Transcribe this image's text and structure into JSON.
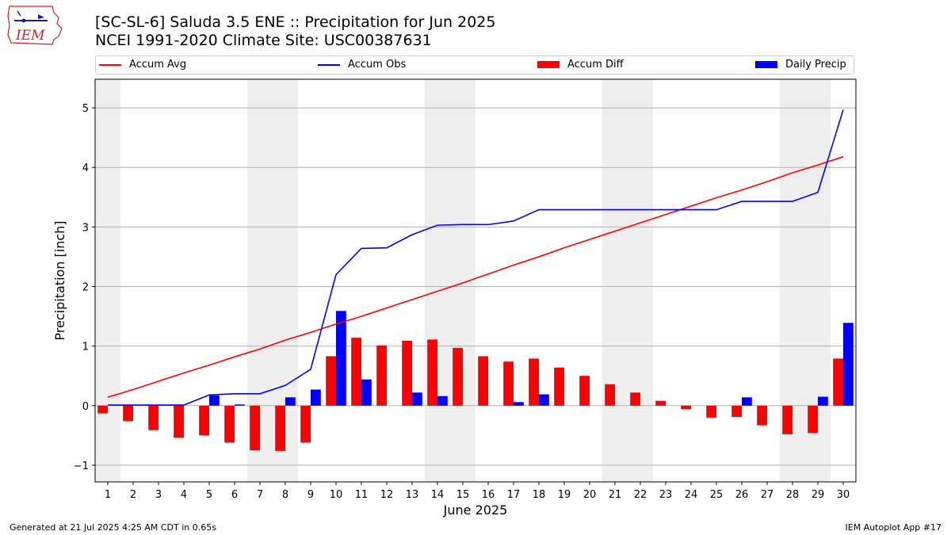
{
  "header": {
    "title_line1": "[SC-SL-6] Saluda 3.5 ENE :: Precipitation for Jun 2025",
    "title_line2": "NCEI 1991-2020 Climate Site: USC00387631",
    "logo_text": "IEM"
  },
  "footer": {
    "generated": "Generated at 21 Jul 2025 4:25 AM CDT in 0.65s",
    "app": "IEM Autoplot App #17"
  },
  "colors": {
    "accum_avg": "#ff0000",
    "accum_obs": "#0000ff",
    "accum_diff": "#ff0000",
    "daily_precip": "#0000ff",
    "weekend_shade": "#eeeeee",
    "grid": "#b0b0b0"
  },
  "chart_data": {
    "type": "bar",
    "xlabel": "June 2025",
    "ylabel": "Precipitation [inch]",
    "ylim": [
      -1.28,
      5.48
    ],
    "yticks": [
      -1,
      0,
      1,
      2,
      3,
      4,
      5
    ],
    "grid": "horizontal",
    "legend_placement": "top",
    "x": [
      1,
      2,
      3,
      4,
      5,
      6,
      7,
      8,
      9,
      10,
      11,
      12,
      13,
      14,
      15,
      16,
      17,
      18,
      19,
      20,
      21,
      22,
      23,
      24,
      25,
      26,
      27,
      28,
      29,
      30
    ],
    "xtick_labels": [
      "1",
      "2",
      "3",
      "4",
      "5",
      "6",
      "7",
      "8",
      "9",
      "10",
      "11",
      "12",
      "13",
      "14",
      "15",
      "16",
      "17",
      "18",
      "19",
      "20",
      "21",
      "22",
      "23",
      "24",
      "25",
      "26",
      "27",
      "28",
      "29",
      "30"
    ],
    "weekend_days": [
      1,
      7,
      8,
      14,
      15,
      21,
      22,
      28,
      29
    ],
    "series": [
      {
        "name": "Accum Avg",
        "kind": "line",
        "values": [
          0.14,
          0.27,
          0.41,
          0.55,
          0.68,
          0.82,
          0.95,
          1.1,
          1.23,
          1.37,
          1.5,
          1.64,
          1.78,
          1.92,
          2.06,
          2.21,
          2.36,
          2.5,
          2.65,
          2.79,
          2.93,
          3.07,
          3.21,
          3.35,
          3.49,
          3.62,
          3.76,
          3.91,
          4.04,
          4.18
        ]
      },
      {
        "name": "Accum Obs",
        "kind": "line",
        "values": [
          0.01,
          0.01,
          0.01,
          0.01,
          0.18,
          0.2,
          0.2,
          0.34,
          0.61,
          2.2,
          2.64,
          2.65,
          2.87,
          3.03,
          3.04,
          3.04,
          3.1,
          3.29,
          3.29,
          3.29,
          3.29,
          3.29,
          3.29,
          3.29,
          3.29,
          3.43,
          3.43,
          3.43,
          3.58,
          4.97
        ]
      },
      {
        "name": "Accum Diff",
        "kind": "bar",
        "values": [
          -0.13,
          -0.26,
          -0.41,
          -0.54,
          -0.5,
          -0.62,
          -0.75,
          -0.76,
          -0.62,
          0.83,
          1.14,
          1.01,
          1.09,
          1.11,
          0.97,
          0.83,
          0.74,
          0.79,
          0.64,
          0.5,
          0.36,
          0.22,
          0.08,
          -0.06,
          -0.2,
          -0.19,
          -0.33,
          -0.48,
          -0.46,
          0.79
        ]
      },
      {
        "name": "Daily Precip",
        "kind": "bar",
        "values": [
          0.0,
          0.0,
          0.0,
          0.0,
          0.17,
          0.02,
          0.0,
          0.14,
          0.27,
          1.59,
          0.44,
          0.0,
          0.22,
          0.16,
          0.0,
          0.0,
          0.06,
          0.19,
          0.0,
          0.0,
          0.0,
          0.0,
          0.0,
          0.0,
          0.0,
          0.14,
          0.0,
          0.0,
          0.15,
          1.39
        ]
      }
    ]
  }
}
